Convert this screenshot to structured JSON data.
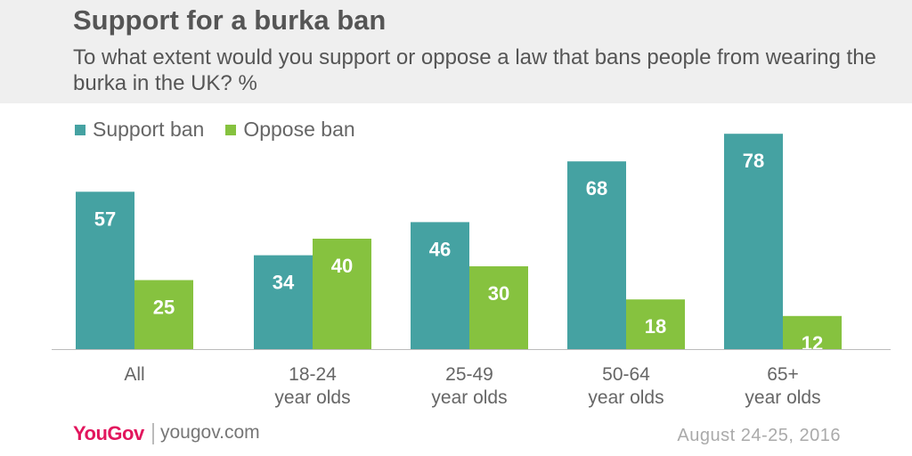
{
  "header": {
    "title": "Support for a burka ban",
    "subtitle": "To what extent would you support or oppose a law that bans people from wearing the burka in the UK? %"
  },
  "colors": {
    "support": "#45a2a2",
    "oppose": "#86c23f",
    "header_bg": "#efefef"
  },
  "chart_data": {
    "type": "bar",
    "categories": [
      [
        "All"
      ],
      [
        "18-24",
        "year olds"
      ],
      [
        "25-49",
        "year olds"
      ],
      [
        "50-64",
        "year olds"
      ],
      [
        "65+",
        "year olds"
      ]
    ],
    "series": [
      {
        "name": "Support ban",
        "values": [
          57,
          34,
          46,
          68,
          78
        ]
      },
      {
        "name": "Oppose ban",
        "values": [
          25,
          40,
          30,
          18,
          12
        ]
      }
    ],
    "title": "Support for a burka ban",
    "ylim": [
      0,
      100
    ],
    "grid": false,
    "legend": "top-left"
  },
  "footer": {
    "logo": "YouGov",
    "site": "yougov.com",
    "date": "August 24-25, 2016"
  }
}
